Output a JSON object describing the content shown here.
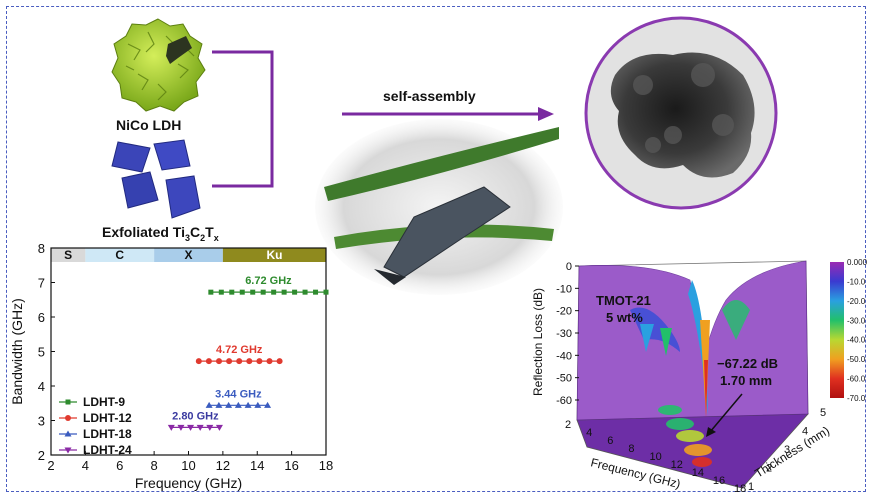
{
  "labels": {
    "ldh": "NiCo LDH",
    "mxene": "Exfoliated Ti",
    "mxene_sub1": "3",
    "mxene_c": "C",
    "mxene_sub2": "2",
    "mxene_t": "T",
    "mxene_sub3": "x",
    "arrow": "self-assembly"
  },
  "chart_data": [
    {
      "type": "line",
      "xlabel": "Frequency (GHz)",
      "ylabel": "Bandwidth (GHz)",
      "xlim": [
        2,
        18
      ],
      "ylim": [
        2,
        8
      ],
      "xticks": [
        "2",
        "4",
        "6",
        "8",
        "10",
        "12",
        "14",
        "16",
        "18"
      ],
      "yticks": [
        "2",
        "3",
        "4",
        "5",
        "6",
        "7",
        "8"
      ],
      "bands": [
        {
          "name": "S",
          "from": 2,
          "to": 4,
          "color": "#d9d9d9"
        },
        {
          "name": "C",
          "from": 4,
          "to": 8,
          "color": "#cfe8f6"
        },
        {
          "name": "X",
          "from": 8,
          "to": 12,
          "color": "#a9cdea"
        },
        {
          "name": "Ku",
          "from": 12,
          "to": 18,
          "color": "#8f8a1e"
        }
      ],
      "series": [
        {
          "name": "LDHT-9",
          "color": "#2e8b2e",
          "marker": "square",
          "y": 6.72,
          "x_start": 11.3,
          "x_end": 18,
          "label": "6.72 GHz",
          "label_color": "#2e8b2e"
        },
        {
          "name": "LDHT-12",
          "color": "#e03a2f",
          "marker": "circle",
          "y": 4.72,
          "x_start": 10.6,
          "x_end": 15.3,
          "label": "4.72 GHz",
          "label_color": "#e03a2f"
        },
        {
          "name": "LDHT-18",
          "color": "#3a5bbf",
          "marker": "triangle",
          "y": 3.44,
          "x_start": 11.2,
          "x_end": 14.6,
          "label": "3.44 GHz",
          "label_color": "#3a5bbf"
        },
        {
          "name": "LDHT-24",
          "color": "#8a2aa5",
          "marker": "triangle-down",
          "y": 2.8,
          "x_start": 9.0,
          "x_end": 11.8,
          "label": "2.80 GHz",
          "label_color": "#3a3aa0"
        }
      ],
      "legend_position": "bottom-left"
    },
    {
      "type": "surface",
      "ylabel": "Reflection Loss (dB)",
      "xlabel": "Frequency (GHz)",
      "zlabel": "Thickness (mm)",
      "freq_ticks": [
        "2",
        "4",
        "6",
        "8",
        "10",
        "12",
        "14",
        "16",
        "18"
      ],
      "thickness_ticks": [
        "1",
        "2",
        "3",
        "4",
        "5"
      ],
      "rl_ticks": [
        "0",
        "-10",
        "-20",
        "-30",
        "-40",
        "-50",
        "-60"
      ],
      "sample": "TMOT-21",
      "loading": "5 wt%",
      "min_value": "−67.22 dB",
      "min_thickness": "1.70 mm",
      "colorbar_ticks": [
        "0.000",
        "-10.0",
        "-20.0",
        "-30.0",
        "-40.0",
        "-50.0",
        "-60.0",
        "-70.0"
      ],
      "colorbar_colors": [
        "#9b2bb3",
        "#3a3ad0",
        "#2aa0e0",
        "#22c06a",
        "#b8d832",
        "#f0a020",
        "#e03020",
        "#b01010"
      ]
    }
  ]
}
